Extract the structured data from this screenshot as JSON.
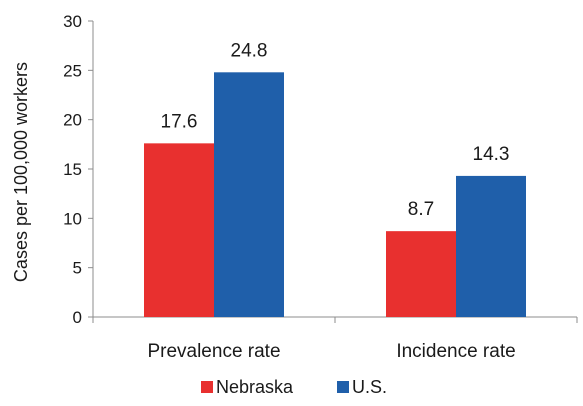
{
  "chart_data": {
    "type": "bar",
    "title": "",
    "xlabel": "",
    "ylabel": "Cases per 100,000 workers",
    "categories": [
      "Prevalence rate",
      "Incidence rate"
    ],
    "series": [
      {
        "name": "Nebraska",
        "values": [
          17.6,
          8.7
        ],
        "color": "#e8302f"
      },
      {
        "name": "U.S.",
        "values": [
          24.8,
          14.3
        ],
        "color": "#1f5faa"
      }
    ],
    "data_labels": [
      [
        "17.6",
        "8.7"
      ],
      [
        "24.8",
        "14.3"
      ]
    ],
    "ylim": [
      0,
      30
    ],
    "yticks": [
      "0",
      "5",
      "10",
      "15",
      "20",
      "25",
      "30"
    ],
    "grid": false,
    "legend_position": "bottom-center"
  }
}
